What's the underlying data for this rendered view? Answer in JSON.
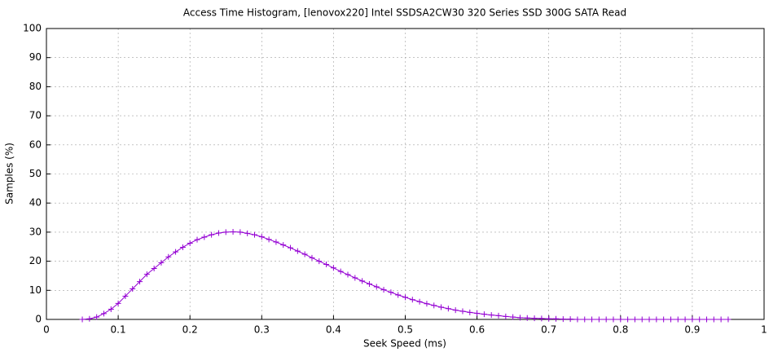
{
  "chart_data": {
    "type": "line",
    "title": "Access Time Histogram, [lenovox220] Intel SSDSA2CW30 320 Series SSD 300G SATA Read",
    "x_label": "Seek Speed (ms)",
    "y_label": "Samples (%)",
    "color": "#9400d3",
    "marker": "+",
    "grid": true,
    "xlim": [
      0,
      1
    ],
    "ylim": [
      0,
      100
    ],
    "xticks": [
      0,
      0.1,
      0.2,
      0.3,
      0.4,
      0.5,
      0.6,
      0.7,
      0.8,
      0.9,
      1
    ],
    "yticks": [
      0,
      10,
      20,
      30,
      40,
      50,
      60,
      70,
      80,
      90,
      100
    ],
    "x": [
      0.05,
      0.06,
      0.07,
      0.08,
      0.09,
      0.1,
      0.11,
      0.12,
      0.13,
      0.14,
      0.15,
      0.16,
      0.17,
      0.18,
      0.19,
      0.2,
      0.21,
      0.22,
      0.23,
      0.24,
      0.25,
      0.26,
      0.27,
      0.28,
      0.29,
      0.3,
      0.31,
      0.32,
      0.33,
      0.34,
      0.35,
      0.36,
      0.37,
      0.38,
      0.39,
      0.4,
      0.41,
      0.42,
      0.43,
      0.44,
      0.45,
      0.46,
      0.47,
      0.48,
      0.49,
      0.5,
      0.51,
      0.52,
      0.53,
      0.54,
      0.55,
      0.56,
      0.57,
      0.58,
      0.59,
      0.6,
      0.61,
      0.62,
      0.63,
      0.64,
      0.65,
      0.66,
      0.67,
      0.68,
      0.69,
      0.7,
      0.71,
      0.72,
      0.73,
      0.74,
      0.75,
      0.76,
      0.77,
      0.78,
      0.79,
      0.8,
      0.81,
      0.82,
      0.83,
      0.84,
      0.85,
      0.86,
      0.87,
      0.88,
      0.89,
      0.9,
      0.91,
      0.92,
      0.93,
      0.94,
      0.95
    ],
    "values": [
      0,
      0.2,
      0.8,
      2,
      3.5,
      5.5,
      8,
      10.5,
      13,
      15.5,
      17.5,
      19.5,
      21.5,
      23.2,
      24.8,
      26.2,
      27.4,
      28.3,
      29.1,
      29.7,
      30,
      30.1,
      30,
      29.6,
      29.1,
      28.4,
      27.5,
      26.6,
      25.6,
      24.6,
      23.5,
      22.4,
      21.2,
      20,
      18.9,
      17.7,
      16.5,
      15.4,
      14.3,
      13.2,
      12.2,
      11.2,
      10.2,
      9.3,
      8.4,
      7.6,
      6.8,
      6.1,
      5.4,
      4.8,
      4.2,
      3.7,
      3.2,
      2.8,
      2.4,
      2.1,
      1.8,
      1.5,
      1.3,
      1,
      0.8,
      0.6,
      0.5,
      0.4,
      0.3,
      0.2,
      0.2,
      0.1,
      0.1,
      0,
      0,
      0,
      0,
      0,
      0,
      0,
      0,
      0,
      0,
      0,
      0,
      0,
      0,
      0,
      0,
      0,
      0,
      0,
      0,
      0,
      0
    ]
  }
}
